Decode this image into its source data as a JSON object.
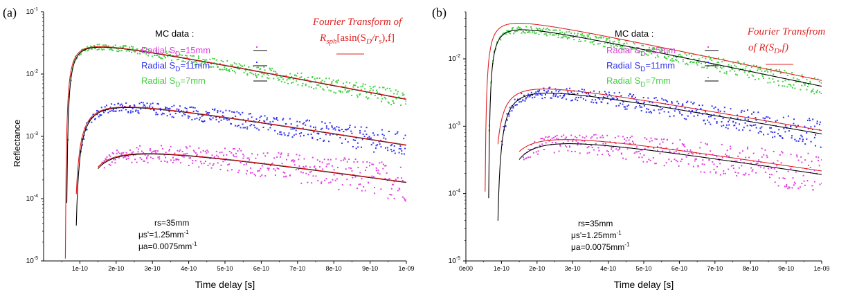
{
  "chart_data": [
    {
      "type": "scatter",
      "panel_label": "(a)",
      "xlabel": "Time delay [s]",
      "ylabel": "Reflectance",
      "xscale": "linear",
      "yscale": "log",
      "xlim": [
        0,
        1e-09
      ],
      "ylim": [
        1e-05,
        0.1
      ],
      "xtick_labels": [
        "1e-10",
        "2e-10",
        "3e-10",
        "4e-10",
        "5e-10",
        "6e-10",
        "7e-10",
        "8e-10",
        "9e-10",
        "1e-09"
      ],
      "legend_title": "MC data :",
      "legend_placement": "top-center",
      "model_label": {
        "line1": "Fourier Transform of",
        "line2_main": "R",
        "line2_sub": "sph",
        "line2_rest": "[asin(S",
        "line2_sub2": "D",
        "line2_rest2": "/r",
        "line2_sub3": "s",
        "line2_end": "),f]"
      },
      "annotation": {
        "rs": "rs=35mm",
        "mus": "μs'=1.25mm",
        "mua": "μa=0.0075mm"
      },
      "series": [
        {
          "name": "Radial SD=15mm",
          "legend_main": "Radial S",
          "legend_sub": "D",
          "legend_rest": "=15mm",
          "color": "#e040e0",
          "model": {
            "c": 0.00052,
            "a": 0.085,
            "b": 5.2e-10,
            "t0": 8e-11,
            "x_start": 1.6e-10
          }
        },
        {
          "name": "Radial SD=11mm",
          "legend_main": "Radial S",
          "legend_sub": "D",
          "legend_rest": "=11mm",
          "color": "#3030f0",
          "model": {
            "c": 0.0029,
            "a": 0.05,
            "b": 4.6e-10,
            "t0": 8e-11,
            "x_start": 1e-10
          }
        },
        {
          "name": "Radial SD=7mm",
          "legend_main": "Radial S",
          "legend_sub": "D",
          "legend_rest": "=7mm",
          "color": "#40d040",
          "model": {
            "c": 0.027,
            "a": 0.025,
            "b": 3.9e-10,
            "t0": 6e-11,
            "x_start": 6e-11
          }
        }
      ]
    },
    {
      "type": "scatter",
      "panel_label": "(b)",
      "xlabel": "Time delay [s]",
      "ylabel": "",
      "xscale": "linear",
      "yscale": "log",
      "xlim": [
        0,
        1e-09
      ],
      "ylim": [
        1e-05,
        0.05
      ],
      "xtick_labels": [
        "0e00",
        "1e-10",
        "2e-10",
        "3e-10",
        "4e-10",
        "5e-10",
        "6e-10",
        "7e-10",
        "8e-10",
        "9e-10",
        "1e-09"
      ],
      "legend_title": "MC data :",
      "legend_placement": "top-center",
      "model_label": {
        "line1": "Fourier Transfrom",
        "line2_main": "of R(S",
        "line2_sub": "D",
        "line2_rest": ",f)"
      },
      "annotation": {
        "rs": "rs=35mm",
        "mus": "μs'=1.25mm",
        "mua": "μa=0.0075mm"
      },
      "series": [
        {
          "name": "Radial SD=15mm",
          "legend_main": "Radial S",
          "legend_sub": "D",
          "legend_rest": "=15mm",
          "color": "#e040e0",
          "model": {
            "c": 0.00055,
            "a": 0.085,
            "b": 5.2e-10,
            "t0": 8e-11,
            "x_start": 1.6e-10
          }
        },
        {
          "name": "Radial SD=11mm",
          "legend_main": "Radial S",
          "legend_sub": "D",
          "legend_rest": "=11mm",
          "color": "#3030f0",
          "model": {
            "c": 0.0031,
            "a": 0.05,
            "b": 4.6e-10,
            "t0": 8e-11,
            "x_start": 1e-10
          }
        },
        {
          "name": "Radial SD=7mm",
          "legend_main": "Radial S",
          "legend_sub": "D",
          "legend_rest": "=7mm",
          "color": "#40d040",
          "model": {
            "c": 0.027,
            "a": 0.025,
            "b": 3.9e-10,
            "t0": 6e-11,
            "x_start": 6e-11
          }
        }
      ]
    }
  ]
}
